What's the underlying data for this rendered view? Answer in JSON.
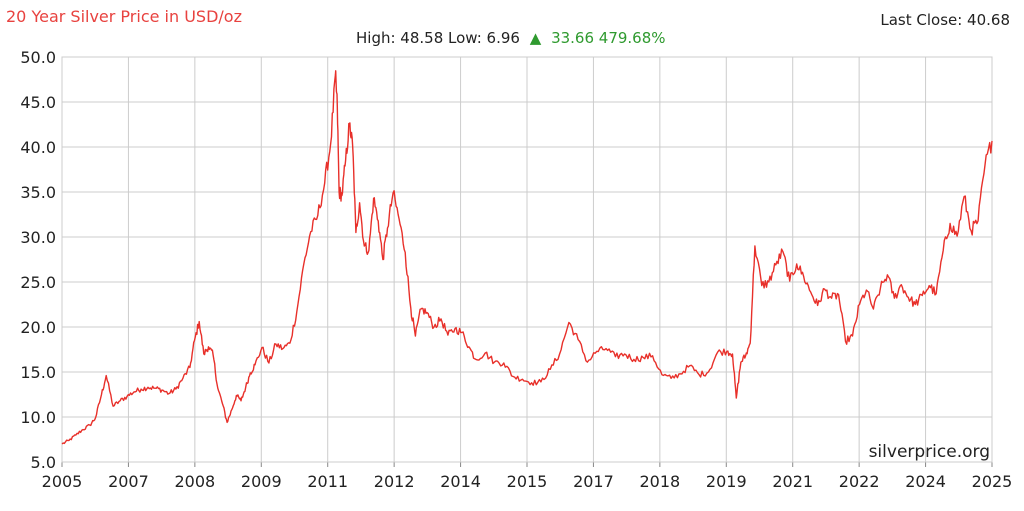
{
  "header": {
    "title": "20 Year Silver Price in USD/oz",
    "last_close_label": "Last Close: 40.68",
    "high_low": "High: 48.58 Low: 6.96",
    "change_arrow": "▲",
    "change": "33.66 479.68%"
  },
  "watermark": "silverprice.org",
  "colors": {
    "title": "#e8423f",
    "line": "#e8302a",
    "change": "#2f9a2f",
    "grid": "#cccccc",
    "text": "#222222"
  },
  "chart_data": {
    "type": "line",
    "title": "20 Year Silver Price in USD/oz",
    "xlabel": "",
    "ylabel": "",
    "xlim": [
      2005.0,
      2025.0
    ],
    "ylim": [
      5.0,
      50.0
    ],
    "x_ticks": [
      "2005",
      "2007",
      "2008",
      "2009",
      "2011",
      "2012",
      "2014",
      "2015",
      "2017",
      "2018",
      "2019",
      "2021",
      "2022",
      "2024",
      "2025"
    ],
    "y_ticks": [
      "5.0",
      "10.0",
      "15.0",
      "20.0",
      "25.0",
      "30.0",
      "35.0",
      "40.0",
      "45.0",
      "50.0"
    ],
    "grid": true,
    "legend": "none",
    "series": [
      {
        "x": [
          2005.0,
          2005.15,
          2005.3,
          2005.45,
          2005.6,
          2005.72,
          2005.85,
          2005.95,
          2006.1,
          2006.25,
          2006.4,
          2006.55,
          2006.7,
          2006.85,
          2007.0,
          2007.15,
          2007.3,
          2007.45,
          2007.6,
          2007.75,
          2007.85,
          2007.95,
          2008.05,
          2008.15,
          2008.25,
          2008.35,
          2008.45,
          2008.55,
          2008.65,
          2008.75,
          2008.85,
          2008.95,
          2009.05,
          2009.15,
          2009.3,
          2009.45,
          2009.6,
          2009.75,
          2009.9,
          2010.05,
          2010.2,
          2010.35,
          2010.5,
          2010.65,
          2010.78,
          2010.88,
          2010.92,
          2010.96,
          2011.02,
          2011.1,
          2011.18,
          2011.25,
          2011.32,
          2011.4,
          2011.5,
          2011.6,
          2011.7,
          2011.8,
          2011.9,
          2012.0,
          2012.12,
          2012.25,
          2012.38,
          2012.5,
          2012.6,
          2012.72,
          2012.85,
          2013.0,
          2013.15,
          2013.3,
          2013.45,
          2013.6,
          2013.75,
          2013.9,
          2014.1,
          2014.3,
          2014.5,
          2014.7,
          2014.9,
          2015.1,
          2015.3,
          2015.5,
          2015.7,
          2015.9,
          2016.1,
          2016.3,
          2016.5,
          2016.7,
          2016.9,
          2017.1,
          2017.3,
          2017.5,
          2017.7,
          2017.9,
          2018.1,
          2018.3,
          2018.5,
          2018.7,
          2018.9,
          2019.1,
          2019.3,
          2019.42,
          2019.5,
          2019.6,
          2019.7,
          2019.8,
          2019.9,
          2020.05,
          2020.2,
          2020.35,
          2020.5,
          2020.65,
          2020.8,
          2020.95,
          2021.1,
          2021.25,
          2021.4,
          2021.55,
          2021.7,
          2021.85,
          2022.0,
          2022.15,
          2022.3,
          2022.45,
          2022.6,
          2022.75,
          2022.9,
          2023.05,
          2023.2,
          2023.35,
          2023.5,
          2023.65,
          2023.8,
          2023.95,
          2024.1,
          2024.25,
          2024.4,
          2024.55,
          2024.7,
          2024.85,
          2025.0
        ],
        "y": [
          7.0,
          7.4,
          8.0,
          8.6,
          9.1,
          9.9,
          12.5,
          14.6,
          11.2,
          11.8,
          12.3,
          12.8,
          13.1,
          13.3,
          13.2,
          13.0,
          12.6,
          13.1,
          14.3,
          15.5,
          18.5,
          20.6,
          17.0,
          17.8,
          16.9,
          13.2,
          11.5,
          9.4,
          10.8,
          12.4,
          11.8,
          13.3,
          14.9,
          15.8,
          17.7,
          16.0,
          18.1,
          17.6,
          18.2,
          21.7,
          27.0,
          30.6,
          32.4,
          36.0,
          40.5,
          48.0,
          44.5,
          35.0,
          34.6,
          38.5,
          42.5,
          40.2,
          30.5,
          33.8,
          29.0,
          28.5,
          34.3,
          31.8,
          27.5,
          31.0,
          34.9,
          32.0,
          28.3,
          22.1,
          19.0,
          22.0,
          21.6,
          20.0,
          20.9,
          19.1,
          19.8,
          19.4,
          17.8,
          16.4,
          17.1,
          16.1,
          16.0,
          14.5,
          14.2,
          13.8,
          13.9,
          15.3,
          17.0,
          20.5,
          18.6,
          16.1,
          17.3,
          17.6,
          16.7,
          17.0,
          16.4,
          16.6,
          16.8,
          14.7,
          14.3,
          14.8,
          15.7,
          14.7,
          15.0,
          17.2,
          17.3,
          17.0,
          12.1,
          16.1,
          16.8,
          18.2,
          29.0,
          24.6,
          25.0,
          26.9,
          28.4,
          25.1,
          27.0,
          25.6,
          23.9,
          22.4,
          24.2,
          23.2,
          23.6,
          18.4,
          19.0,
          22.5,
          24.1,
          22.0,
          24.3,
          25.8,
          23.2,
          24.7,
          23.3,
          22.5,
          23.5,
          24.6,
          23.7,
          28.5,
          31.5,
          30.1,
          34.5,
          30.7,
          31.8,
          38.0,
          40.68
        ]
      }
    ]
  }
}
